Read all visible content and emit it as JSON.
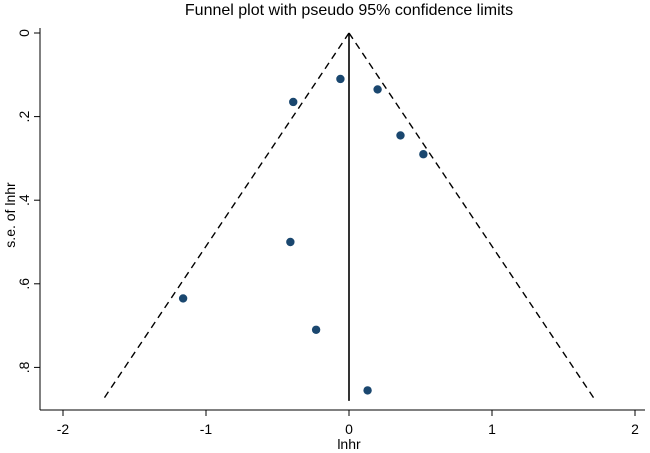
{
  "chart_data": {
    "type": "scatter",
    "title": "Funnel plot with pseudo 95% confidence limits",
    "xlabel": "lnhr",
    "ylabel": "s.e. of lnhr",
    "xlim": [
      -2.1,
      2.1
    ],
    "ylim": [
      0,
      0.9
    ],
    "y_reversed": true,
    "x_ticks": [
      -2,
      -1,
      0,
      1,
      2
    ],
    "x_tick_labels": [
      "-2",
      "-1",
      "0",
      "1",
      "2"
    ],
    "y_ticks": [
      0,
      0.2,
      0.4,
      0.6,
      0.8
    ],
    "y_tick_labels": [
      "0",
      ".2",
      ".4",
      ".6",
      ".8"
    ],
    "center_line": {
      "x": 0,
      "y_from": 0,
      "y_to": 0.88
    },
    "confidence_limits": {
      "level": "95%",
      "left": [
        [
          0,
          0
        ],
        [
          -1.725,
          0.88
        ]
      ],
      "right": [
        [
          0,
          0
        ],
        [
          1.725,
          0.88
        ]
      ]
    },
    "marker_color": "#1a476f",
    "points": [
      {
        "x": -0.06,
        "y": 0.11
      },
      {
        "x": 0.2,
        "y": 0.135
      },
      {
        "x": -0.39,
        "y": 0.165
      },
      {
        "x": 0.36,
        "y": 0.245
      },
      {
        "x": 0.52,
        "y": 0.29
      },
      {
        "x": -0.41,
        "y": 0.5
      },
      {
        "x": -1.16,
        "y": 0.635
      },
      {
        "x": -0.23,
        "y": 0.71
      },
      {
        "x": 0.13,
        "y": 0.855
      }
    ]
  }
}
